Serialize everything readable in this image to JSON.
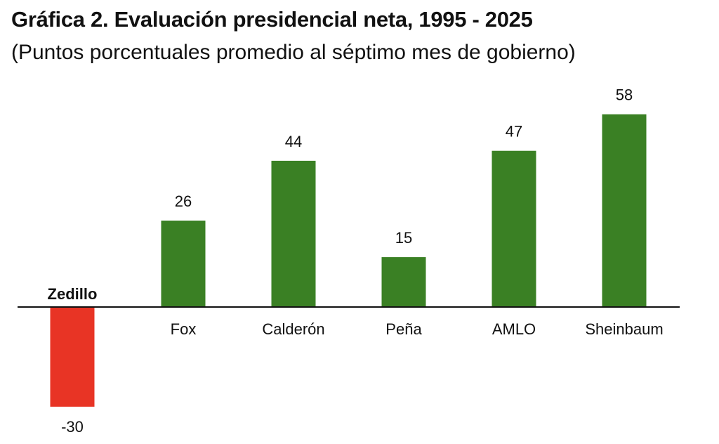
{
  "title": "Gráfica 2. Evaluación presidencial neta, 1995 - 2025",
  "subtitle": "(Puntos porcentuales promedio al séptimo mes de gobierno)",
  "colors": {
    "positive": "#3a8024",
    "negative": "#e83425",
    "axis": "#111111"
  },
  "chart_data": {
    "type": "bar",
    "title": "Gráfica 2. Evaluación presidencial neta, 1995 - 2025",
    "subtitle": "(Puntos porcentuales promedio al séptimo mes de gobierno)",
    "categories": [
      "Zedillo",
      "Fox",
      "Calderón",
      "Peña",
      "AMLO",
      "Sheinbaum"
    ],
    "values": [
      -30,
      26,
      44,
      15,
      47,
      58
    ],
    "data_labels": [
      "-30",
      "26",
      "44",
      "15",
      "47",
      "58"
    ],
    "grid": false,
    "legend": "none"
  }
}
